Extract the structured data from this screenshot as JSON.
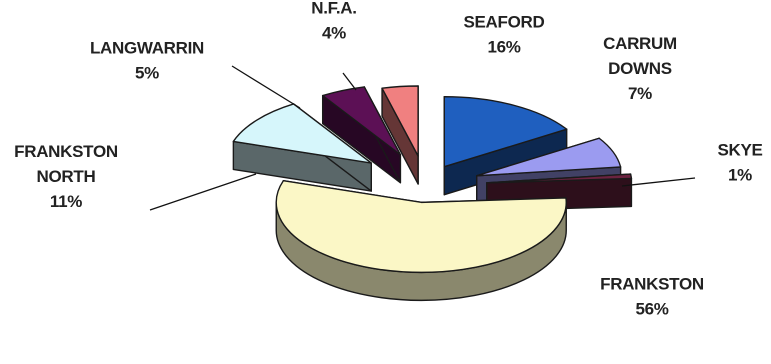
{
  "chart_data": {
    "type": "pie",
    "style": "3d-exploded",
    "title": "",
    "slices": [
      {
        "label": "SEAFORD",
        "label_lines": [
          "SEAFORD"
        ],
        "value": 16,
        "value_text": "16%",
        "color": "#1f5fbf"
      },
      {
        "label": "CARRUM DOWNS",
        "label_lines": [
          "CARRUM",
          "DOWNS"
        ],
        "value": 7,
        "value_text": "7%",
        "color": "#9b9bf0"
      },
      {
        "label": "SKYE",
        "label_lines": [
          "SKYE"
        ],
        "value": 1,
        "value_text": "1%",
        "color": "#6b2340"
      },
      {
        "label": "FRANKSTON",
        "label_lines": [
          "FRANKSTON"
        ],
        "value": 56,
        "value_text": "56%",
        "color": "#fbf7c6"
      },
      {
        "label": "FRANKSTON NORTH",
        "label_lines": [
          "FRANKSTON",
          "NORTH"
        ],
        "value": 11,
        "value_text": "11%",
        "color": "#d6f6fb"
      },
      {
        "label": "LANGWARRIN",
        "label_lines": [
          "LANGWARRIN"
        ],
        "value": 5,
        "value_text": "5%",
        "color": "#5c1055"
      },
      {
        "label": "N.F.A.",
        "label_lines": [
          "N.F.A."
        ],
        "value": 4,
        "value_text": "4%",
        "color": "#f08080"
      }
    ]
  }
}
